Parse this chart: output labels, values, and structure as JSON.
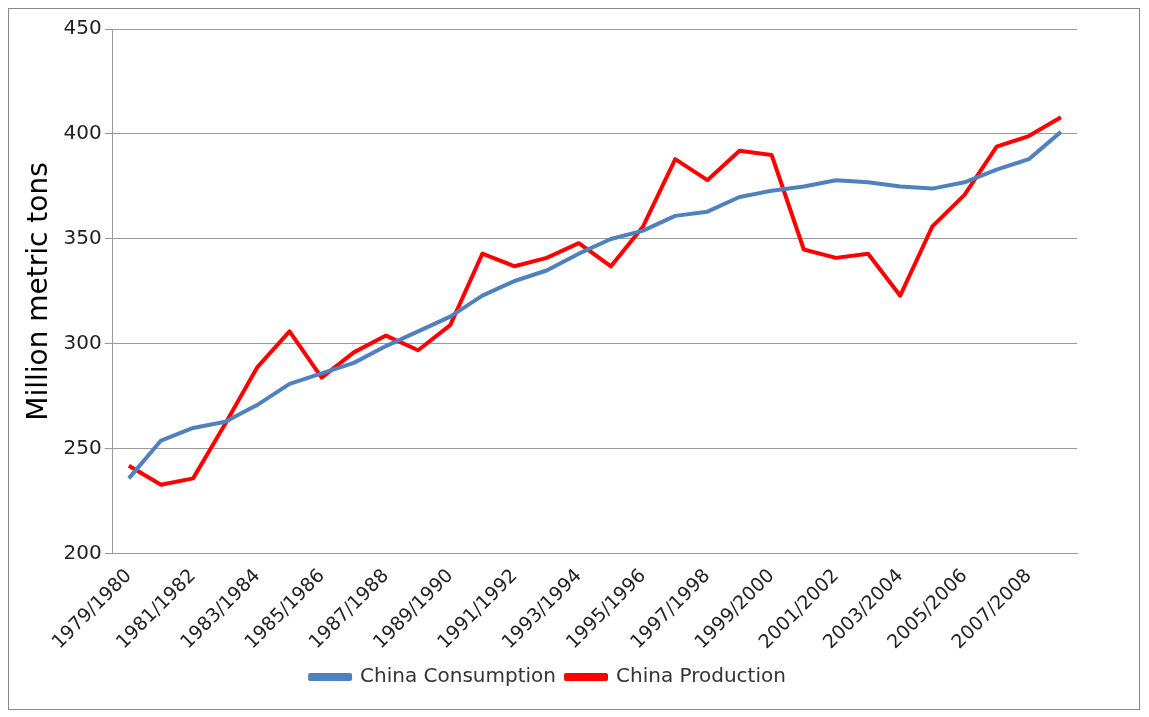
{
  "chart_data": {
    "type": "line",
    "ylabel": "Million metric tons",
    "categories": [
      "1979/1980",
      null,
      "1981/1982",
      null,
      "1983/1984",
      null,
      "1985/1986",
      null,
      "1987/1988",
      null,
      "1989/1990",
      null,
      "1991/1992",
      null,
      "1993/1994",
      null,
      "1995/1996",
      null,
      "1997/1998",
      null,
      "1999/2000",
      null,
      "2001/2002",
      null,
      "2003/2004",
      null,
      "2005/2006",
      null,
      "2007/2008",
      null
    ],
    "series": [
      {
        "name": "China Consumption",
        "color": "#4f81bd",
        "values": [
          236,
          254,
          260,
          263,
          271,
          281,
          286,
          291,
          299,
          306,
          313,
          323,
          330,
          335,
          343,
          350,
          354,
          361,
          363,
          370,
          373,
          375,
          378,
          377,
          375,
          374,
          377,
          383,
          388,
          401
        ]
      },
      {
        "name": "China Production",
        "color": "#ff0000",
        "values": [
          242,
          233,
          236,
          262,
          289,
          306,
          284,
          296,
          304,
          297,
          309,
          343,
          337,
          341,
          348,
          337,
          356,
          388,
          378,
          392,
          390,
          345,
          341,
          343,
          323,
          356,
          371,
          394,
          399,
          408
        ]
      }
    ],
    "ylim": [
      200,
      450
    ],
    "yticks": [
      200,
      250,
      300,
      350,
      400,
      450
    ],
    "grid": "y",
    "legend": "bottom",
    "marker": "none",
    "line_style": "solid"
  }
}
